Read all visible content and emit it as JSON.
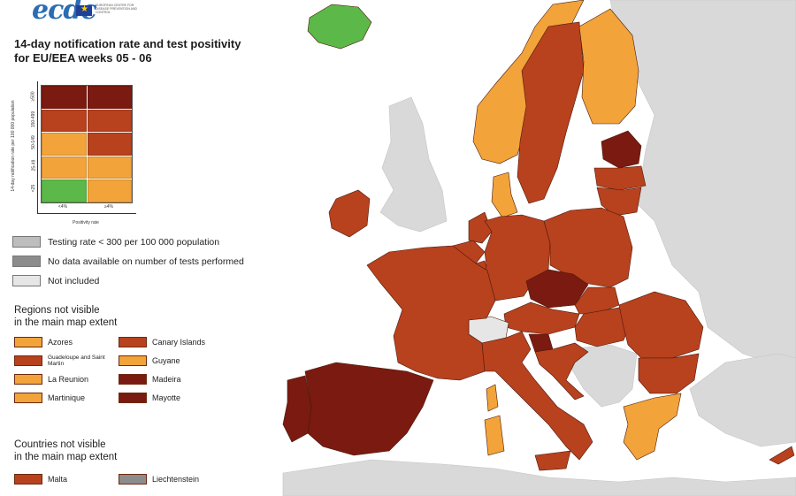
{
  "colors": {
    "sea": "#ffffff",
    "non_eu_land": "#d9d9d9",
    "dark_red": "#7a1a10",
    "red": "#b8411e",
    "orange": "#f2a33a",
    "green": "#5cb848",
    "grey": "#bdbdbd",
    "dark_grey": "#8c8c8c",
    "light_grey": "#e6e6e6",
    "border": "#4a1a0c"
  },
  "logo": {
    "text": "ecdc",
    "subtitle": "EUROPEAN CENTRE FOR DISEASE PREVENTION AND CONTROL"
  },
  "title": {
    "line1": "14-day notification rate and test positivity",
    "line2": "for EU/EEA weeks 05 - 06"
  },
  "matrix": {
    "y_axis_label": "14-day notification rate per 100 000 population",
    "x_axis_label": "Positivity rate",
    "columns": [
      "<4%",
      "≥4%"
    ],
    "bands": [
      "≥500",
      "150-499",
      "50-149",
      "25-49",
      "<25"
    ],
    "cells": [
      [
        "dark_red",
        "dark_red"
      ],
      [
        "red",
        "red"
      ],
      [
        "orange",
        "red"
      ],
      [
        "orange",
        "orange"
      ],
      [
        "green",
        "orange"
      ]
    ]
  },
  "legend": [
    {
      "label": "Testing rate < 300 per 100 000 population",
      "color": "grey"
    },
    {
      "label": "No data available on number of tests performed",
      "color": "dark_grey"
    },
    {
      "label": "Not included",
      "color": "light_grey"
    }
  ],
  "regions_title": {
    "line1": "Regions not visible",
    "line2": "in the main map extent"
  },
  "regions": [
    {
      "label": "Azores",
      "color": "orange",
      "small": false
    },
    {
      "label": "Canary Islands",
      "color": "red",
      "small": false
    },
    {
      "label": "Guadeloupe and Saint Martin",
      "color": "red",
      "small": true
    },
    {
      "label": "Guyane",
      "color": "orange",
      "small": false
    },
    {
      "label": "La Reunion",
      "color": "orange",
      "small": false
    },
    {
      "label": "Madeira",
      "color": "dark_red",
      "small": false
    },
    {
      "label": "Martinique",
      "color": "orange",
      "small": false
    },
    {
      "label": "Mayotte",
      "color": "dark_red",
      "small": false
    }
  ],
  "countries_title": {
    "line1": "Countries not visible",
    "line2": "in the main map extent"
  },
  "countries": [
    {
      "label": "Malta",
      "color": "red"
    },
    {
      "label": "Liechtenstein",
      "color": "dark_grey"
    }
  ],
  "map_regions": [
    {
      "name": "iceland",
      "color": "green"
    },
    {
      "name": "ireland",
      "color": "red"
    },
    {
      "name": "great-britain",
      "color": "non_eu_land"
    },
    {
      "name": "norway",
      "color": "orange"
    },
    {
      "name": "sweden",
      "color": "red"
    },
    {
      "name": "finland",
      "color": "orange"
    },
    {
      "name": "estonia",
      "color": "dark_red"
    },
    {
      "name": "latvia",
      "color": "red"
    },
    {
      "name": "lithuania",
      "color": "red"
    },
    {
      "name": "denmark",
      "color": "orange"
    },
    {
      "name": "germany",
      "color": "red"
    },
    {
      "name": "netherlands",
      "color": "red"
    },
    {
      "name": "belgium",
      "color": "red"
    },
    {
      "name": "luxembourg",
      "color": "red"
    },
    {
      "name": "france",
      "color": "red"
    },
    {
      "name": "spain",
      "color": "dark_red"
    },
    {
      "name": "portugal",
      "color": "dark_red"
    },
    {
      "name": "poland",
      "color": "red"
    },
    {
      "name": "czechia",
      "color": "dark_red"
    },
    {
      "name": "slovakia",
      "color": "red"
    },
    {
      "name": "austria",
      "color": "red"
    },
    {
      "name": "switzerland",
      "color": "light_grey"
    },
    {
      "name": "italy",
      "color": "red"
    },
    {
      "name": "slovenia",
      "color": "dark_red"
    },
    {
      "name": "hungary",
      "color": "red"
    },
    {
      "name": "romania",
      "color": "red"
    },
    {
      "name": "bulgaria",
      "color": "red"
    },
    {
      "name": "greece",
      "color": "orange"
    },
    {
      "name": "croatia",
      "color": "red"
    },
    {
      "name": "cyprus",
      "color": "red"
    },
    {
      "name": "corsica",
      "color": "orange"
    },
    {
      "name": "sardinia",
      "color": "orange"
    },
    {
      "name": "sicily",
      "color": "red"
    },
    {
      "name": "balkans-non-eu",
      "color": "non_eu_land"
    },
    {
      "name": "eastern-europe-non-eu",
      "color": "non_eu_land"
    },
    {
      "name": "turkey",
      "color": "non_eu_land"
    },
    {
      "name": "north-africa",
      "color": "non_eu_land"
    }
  ]
}
